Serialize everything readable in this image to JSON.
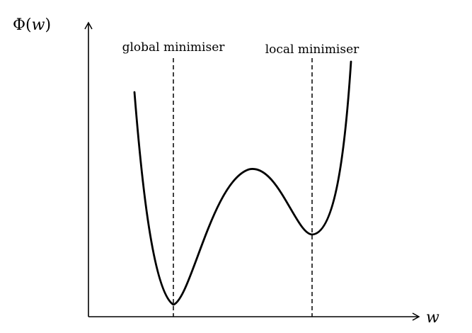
{
  "axes": {
    "y_label_symbol": "Φ",
    "y_label_open": "(",
    "y_label_var": "w",
    "y_label_close": ")",
    "x_label": "w"
  },
  "markers": {
    "global_label": "global minimiser",
    "local_label": "local minimiser"
  }
}
